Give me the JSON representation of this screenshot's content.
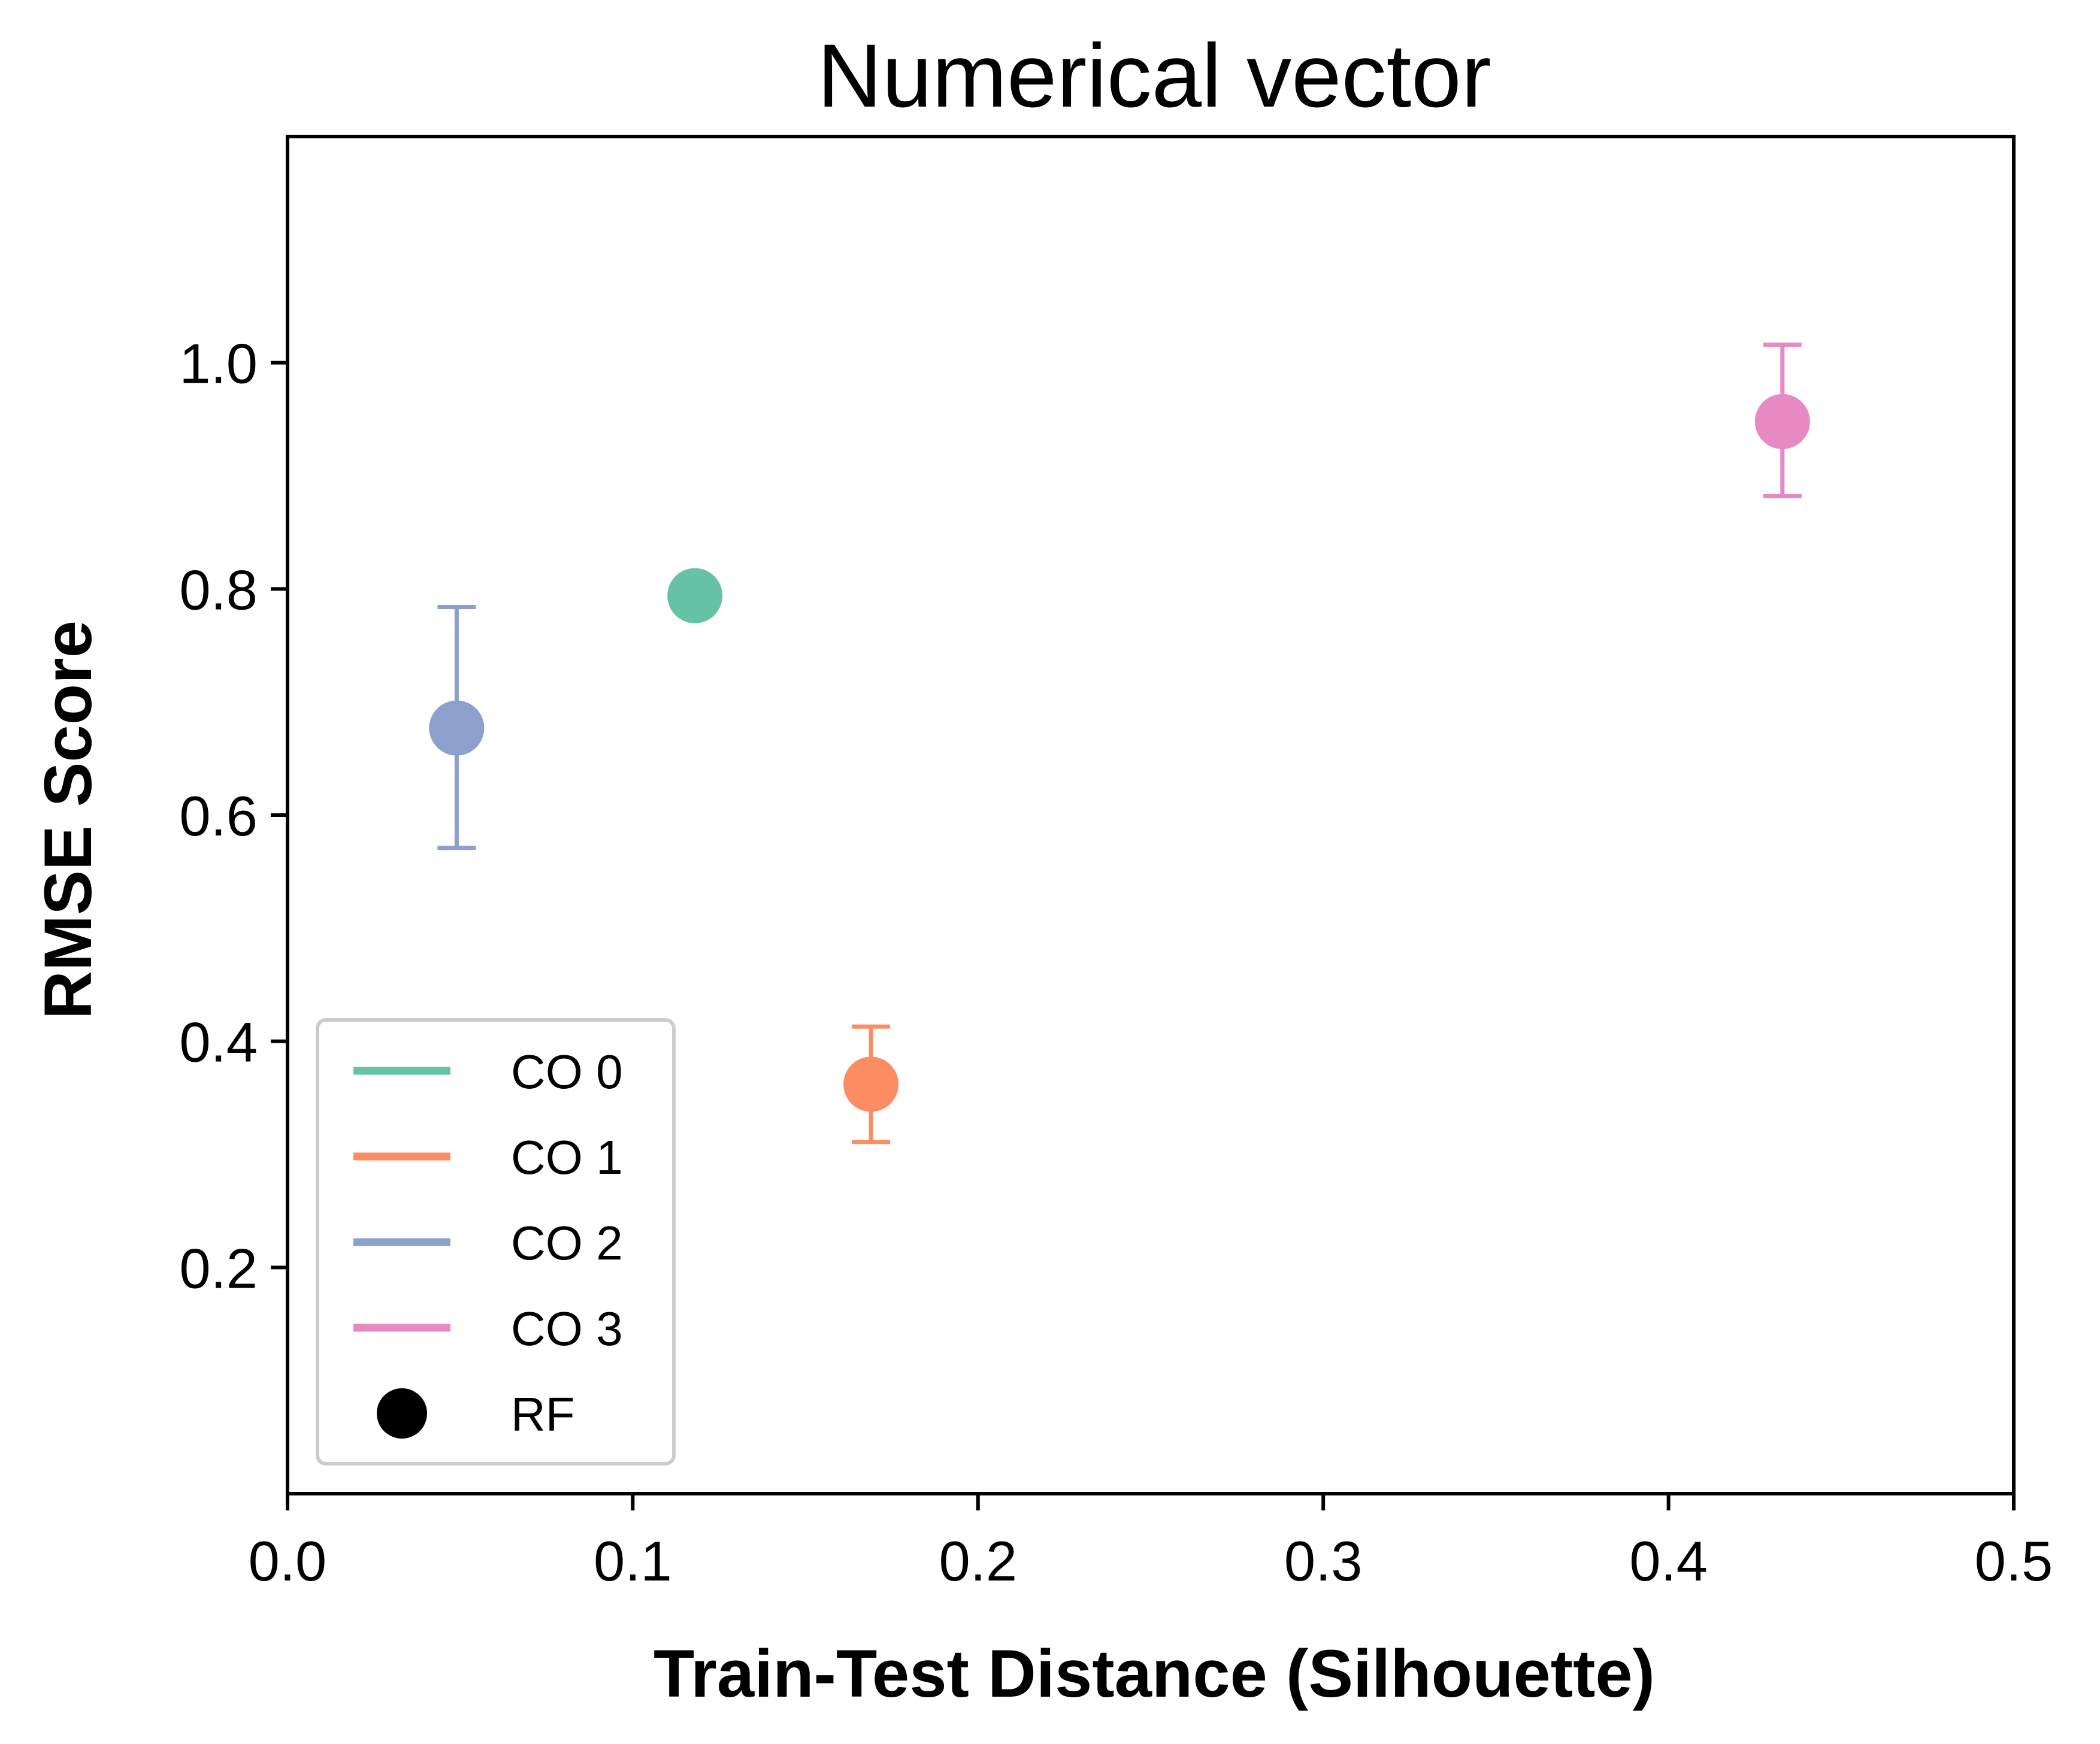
{
  "chart_data": {
    "type": "scatter",
    "title": "Numerical vector",
    "xlabel": "Train-Test Distance (Silhouette)",
    "ylabel": "RMSE Score",
    "xlim": [
      0.0,
      0.5
    ],
    "ylim": [
      0.0,
      1.2
    ],
    "xticks": [
      "0.0",
      "0.1",
      "0.2",
      "0.3",
      "0.4",
      "0.5"
    ],
    "xtick_values": [
      0.0,
      0.1,
      0.2,
      0.3,
      0.4,
      0.5
    ],
    "yticks": [
      "0.2",
      "0.4",
      "0.6",
      "0.8",
      "1.0"
    ],
    "ytick_values": [
      0.2,
      0.4,
      0.6,
      0.8,
      1.0
    ],
    "grid": false,
    "legend_position": "lower-left",
    "marker_label": "RF",
    "series": [
      {
        "name": "CO 0",
        "color": "#66c2a5",
        "x": 0.118,
        "y": 0.794,
        "err_low": 0.779,
        "err_high": 0.809
      },
      {
        "name": "CO 1",
        "color": "#fc8d62",
        "x": 0.169,
        "y": 0.362,
        "err_low": 0.311,
        "err_high": 0.413
      },
      {
        "name": "CO 2",
        "color": "#8da0cb",
        "x": 0.049,
        "y": 0.677,
        "err_low": 0.571,
        "err_high": 0.784
      },
      {
        "name": "CO 3",
        "color": "#e78ac3",
        "x": 0.433,
        "y": 0.948,
        "err_low": 0.882,
        "err_high": 1.016
      }
    ]
  }
}
